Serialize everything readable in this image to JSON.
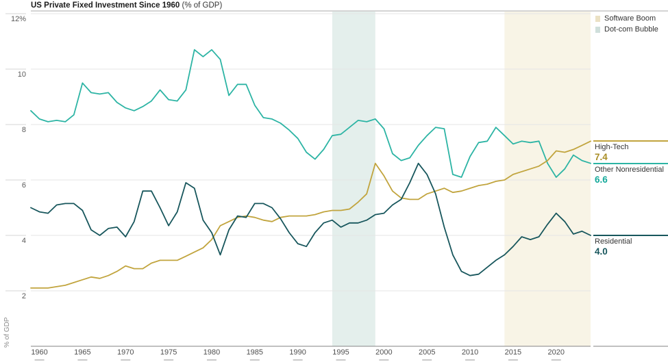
{
  "title": {
    "main": "US Private Fixed Investment Since 1960",
    "suffix": " (% of GDP)"
  },
  "legend": {
    "items": [
      {
        "label": "Software Boom",
        "swatch_color": "#ebe1c4"
      },
      {
        "label": "Dot-com Bubble",
        "swatch_color": "#cfdfdb"
      }
    ]
  },
  "y_axis": {
    "unit_label": "% of GDP",
    "tick_labels": [
      "12%",
      "10",
      "8",
      "6",
      "4",
      "2"
    ],
    "tick_values": [
      12,
      10,
      8,
      6,
      4,
      2
    ]
  },
  "x_axis": {
    "tick_labels": [
      "1960",
      "1965",
      "1970",
      "1975",
      "1980",
      "1985",
      "1990",
      "1995",
      "2000",
      "2005",
      "2010",
      "2015",
      "2020"
    ],
    "tick_values": [
      1960,
      1965,
      1970,
      1975,
      1980,
      1985,
      1990,
      1995,
      2000,
      2005,
      2010,
      2015,
      2020
    ]
  },
  "chart_data": {
    "type": "line",
    "title": "US Private Fixed Investment Since 1960 (% of GDP)",
    "ylabel": "% of GDP",
    "xlim": [
      1959,
      2024.6
    ],
    "ylim": [
      0,
      12.1
    ],
    "grid": true,
    "legend_position": "top-right",
    "x": [
      1959,
      1960,
      1961,
      1962,
      1963,
      1964,
      1965,
      1966,
      1967,
      1968,
      1969,
      1970,
      1971,
      1972,
      1973,
      1974,
      1975,
      1976,
      1977,
      1978,
      1979,
      1980,
      1981,
      1982,
      1983,
      1984,
      1985,
      1986,
      1987,
      1988,
      1989,
      1990,
      1991,
      1992,
      1993,
      1994,
      1995,
      1996,
      1997,
      1998,
      1999,
      2000,
      2001,
      2002,
      2003,
      2004,
      2005,
      2006,
      2007,
      2008,
      2009,
      2010,
      2011,
      2012,
      2013,
      2014,
      2015,
      2016,
      2017,
      2018,
      2019,
      2020,
      2021,
      2022,
      2023,
      2024
    ],
    "series": [
      {
        "name": "Other Nonresidential",
        "end_value_label": "6.6",
        "color": "#2cb4a4",
        "value_color": "#14a99a",
        "values": [
          8.5,
          8.2,
          8.1,
          8.15,
          8.1,
          8.35,
          9.5,
          9.15,
          9.1,
          9.15,
          8.8,
          8.6,
          8.5,
          8.65,
          8.85,
          9.25,
          8.9,
          8.85,
          9.25,
          10.7,
          10.45,
          10.7,
          10.35,
          9.05,
          9.45,
          9.45,
          8.7,
          8.25,
          8.2,
          8.05,
          7.8,
          7.5,
          7.0,
          6.75,
          7.1,
          7.6,
          7.65,
          7.9,
          8.15,
          8.1,
          8.2,
          7.85,
          6.95,
          6.7,
          6.8,
          7.25,
          7.6,
          7.9,
          7.85,
          6.2,
          6.1,
          6.85,
          7.35,
          7.4,
          7.9,
          7.6,
          7.3,
          7.4,
          7.35,
          7.4,
          6.6,
          6.1,
          6.4,
          6.9,
          6.7,
          6.6
        ]
      },
      {
        "name": "High-Tech",
        "end_value_label": "7.4",
        "color": "#c1a43d",
        "value_color": "#a98e26",
        "values": [
          2.1,
          2.1,
          2.1,
          2.15,
          2.2,
          2.3,
          2.4,
          2.5,
          2.45,
          2.55,
          2.7,
          2.9,
          2.8,
          2.8,
          3.0,
          3.1,
          3.1,
          3.1,
          3.25,
          3.4,
          3.55,
          3.85,
          4.35,
          4.5,
          4.65,
          4.7,
          4.65,
          4.55,
          4.5,
          4.65,
          4.7,
          4.7,
          4.7,
          4.75,
          4.85,
          4.9,
          4.9,
          4.95,
          5.2,
          5.5,
          6.6,
          6.15,
          5.6,
          5.35,
          5.3,
          5.3,
          5.5,
          5.6,
          5.7,
          5.55,
          5.6,
          5.7,
          5.8,
          5.85,
          5.95,
          6.0,
          6.2,
          6.3,
          6.4,
          6.5,
          6.7,
          7.05,
          7.0,
          7.1,
          7.25,
          7.4
        ]
      },
      {
        "name": "Residential",
        "end_value_label": "4.0",
        "color": "#17565c",
        "value_color": "#17565c",
        "values": [
          5.0,
          4.85,
          4.8,
          5.1,
          5.15,
          5.15,
          4.9,
          4.2,
          4.0,
          4.25,
          4.3,
          3.95,
          4.5,
          5.6,
          5.6,
          5.0,
          4.35,
          4.85,
          5.9,
          5.7,
          4.55,
          4.1,
          3.3,
          4.2,
          4.7,
          4.65,
          5.15,
          5.15,
          5.0,
          4.6,
          4.1,
          3.7,
          3.6,
          4.1,
          4.45,
          4.55,
          4.3,
          4.45,
          4.45,
          4.55,
          4.75,
          4.8,
          5.1,
          5.3,
          5.9,
          6.6,
          6.2,
          5.5,
          4.3,
          3.3,
          2.7,
          2.55,
          2.6,
          2.85,
          3.1,
          3.3,
          3.6,
          3.95,
          3.85,
          3.95,
          4.4,
          4.8,
          4.5,
          4.05,
          4.15,
          4.0
        ]
      }
    ],
    "bands": [
      {
        "name": "Dot-com Bubble",
        "from": 1994,
        "to": 1999,
        "color": "#e4efec"
      },
      {
        "name": "Software Boom",
        "from": 2014,
        "to": 2024.6,
        "color": "#f8f4e6"
      }
    ]
  }
}
